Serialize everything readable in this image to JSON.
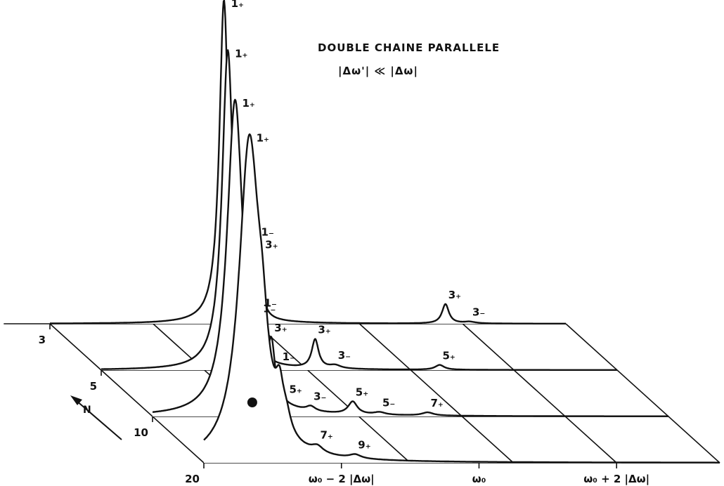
{
  "chart_data": {
    "type": "line",
    "title": "DOUBLE CHAINE PARALLELE",
    "subtitle": "|Δω'| ≪ |Δω|",
    "view": "3d-waterfall",
    "x_axis": {
      "tick_labels": [
        "ω₀ − 2 |Δω|",
        "ω₀",
        "ω₀ + 2 |Δω|"
      ],
      "tick_values": [
        -2,
        0,
        2
      ],
      "range": [
        -4.0,
        3.5
      ]
    },
    "depth_axis": {
      "label": "N",
      "tick_labels": [
        "3",
        "5",
        "10",
        "20"
      ],
      "values": [
        3,
        5,
        10,
        20
      ]
    },
    "grid": true,
    "series": [
      {
        "N": 20,
        "peaks": [
          {
            "label": "1₊",
            "x": -3.34,
            "height": 1.0,
            "width": 0.18
          },
          {
            "label": "3₊",
            "x": -3.15,
            "height": 0.18,
            "width": 0.1
          },
          {
            "label": "1₋",
            "x": -2.9,
            "height": 0.12,
            "width": 0.07
          },
          {
            "label": "5₊",
            "x": -2.8,
            "height": 0.05,
            "width": 0.08
          },
          {
            "label": "7₊",
            "x": -2.35,
            "height": 0.02,
            "width": 0.1
          },
          {
            "label": "9₊",
            "x": -1.8,
            "height": 0.012,
            "width": 0.1
          }
        ]
      },
      {
        "N": 10,
        "peaks": [
          {
            "label": "1₊",
            "x": -2.8,
            "height": 1.0,
            "width": 0.14
          },
          {
            "label": "1₋",
            "x": -2.42,
            "height": 0.19,
            "width": 0.06
          },
          {
            "label": "3₊",
            "x": -2.27,
            "height": 0.16,
            "width": 0.06
          },
          {
            "label": "3₋",
            "x": -1.7,
            "height": 0.015,
            "width": 0.08
          },
          {
            "label": "5₊",
            "x": -1.09,
            "height": 0.04,
            "width": 0.08
          },
          {
            "label": "5₋",
            "x": -0.7,
            "height": 0.008,
            "width": 0.1
          },
          {
            "label": "7₊",
            "x": 0.0,
            "height": 0.01,
            "width": 0.1
          }
        ]
      },
      {
        "N": 5,
        "peaks": [
          {
            "label": "1₊",
            "x": -2.16,
            "height": 1.0,
            "width": 0.1
          },
          {
            "label": "1₋",
            "x": -1.69,
            "height": 0.12,
            "width": 0.05
          },
          {
            "label": "3₊",
            "x": -0.89,
            "height": 0.09,
            "width": 0.06
          },
          {
            "label": "3₋",
            "x": -0.6,
            "height": 0.01,
            "width": 0.1
          },
          {
            "label": "5₊",
            "x": 0.92,
            "height": 0.015,
            "width": 0.08
          }
        ]
      },
      {
        "N": 3,
        "peaks": [
          {
            "label": "1₊",
            "x": -1.47,
            "height": 1.0,
            "width": 0.08
          },
          {
            "label": "1₋",
            "x": -0.97,
            "height": 0.23,
            "width": 0.05
          },
          {
            "label": "3₊",
            "x": 1.75,
            "height": 0.06,
            "width": 0.06
          },
          {
            "label": "3₋",
            "x": 2.1,
            "height": 0.005,
            "width": 0.1
          }
        ]
      }
    ],
    "annotations": [
      {
        "label": "●",
        "near_series_N": 10,
        "x": -2.55
      }
    ]
  }
}
